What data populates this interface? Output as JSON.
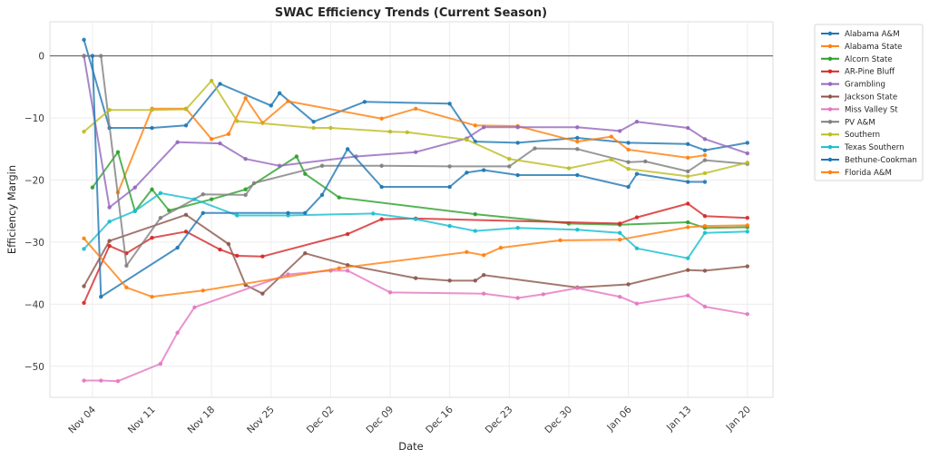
{
  "chart_data": {
    "type": "line",
    "title": "SWAC Efficiency Trends (Current Season)",
    "xlabel": "Date",
    "ylabel": "Efficiency Margin",
    "x_tick_labels": [
      "Nov 04",
      "Nov 11",
      "Nov 18",
      "Nov 25",
      "Dec 02",
      "Dec 09",
      "Dec 16",
      "Dec 23",
      "Dec 30",
      "Jan 06",
      "Jan 13",
      "Jan 20"
    ],
    "x_ticks": [
      "2024-11-04",
      "2024-11-11",
      "2024-11-18",
      "2024-11-25",
      "2024-12-02",
      "2024-12-09",
      "2024-12-16",
      "2024-12-23",
      "2024-12-30",
      "2025-01-06",
      "2025-01-13",
      "2025-01-20"
    ],
    "xlim": [
      "2024-10-30",
      "2025-01-23"
    ],
    "y_ticks": [
      0,
      -10,
      -20,
      -30,
      -40,
      -50
    ],
    "ylim": [
      -55,
      5.5
    ],
    "reference_line_y": 0,
    "grid": true,
    "legend_placement": "outside-top-right",
    "series": [
      {
        "name": "Alabama A&M",
        "color": "#1f77b4",
        "points": [
          [
            "2024-11-03",
            2.6
          ],
          [
            "2024-11-06",
            -11.6
          ],
          [
            "2024-11-11",
            -11.6
          ],
          [
            "2024-11-15",
            -11.2
          ],
          [
            "2024-11-19",
            -4.5
          ],
          [
            "2024-11-25",
            -8.0
          ],
          [
            "2024-11-26",
            -6.0
          ],
          [
            "2024-11-30",
            -10.6
          ],
          [
            "2024-12-06",
            -7.4
          ],
          [
            "2024-12-16",
            -7.7
          ],
          [
            "2024-12-19",
            -13.8
          ],
          [
            "2024-12-24",
            -14.0
          ],
          [
            "2024-12-31",
            -13.2
          ],
          [
            "2025-01-06",
            -14.0
          ],
          [
            "2025-01-13",
            -14.2
          ],
          [
            "2025-01-15",
            -15.2
          ],
          [
            "2025-01-20",
            -14.0
          ]
        ]
      },
      {
        "name": "Alabama State",
        "color": "#ff7f0e",
        "points": [
          [
            "2024-11-07",
            -22.0
          ],
          [
            "2024-11-11",
            -8.5
          ],
          [
            "2024-11-15",
            -8.5
          ],
          [
            "2024-11-18",
            -13.4
          ],
          [
            "2024-11-20",
            -12.6
          ],
          [
            "2024-11-22",
            -6.8
          ],
          [
            "2024-11-24",
            -10.8
          ],
          [
            "2024-11-27",
            -7.3
          ],
          [
            "2024-12-08",
            -10.1
          ],
          [
            "2024-12-12",
            -8.5
          ],
          [
            "2024-12-19",
            -11.2
          ],
          [
            "2024-12-24",
            -11.3
          ],
          [
            "2024-12-31",
            -13.8
          ],
          [
            "2025-01-04",
            -13.0
          ],
          [
            "2025-01-06",
            -15.1
          ],
          [
            "2025-01-13",
            -16.4
          ],
          [
            "2025-01-15",
            -16.0
          ]
        ]
      },
      {
        "name": "Alcorn State",
        "color": "#2ca02c",
        "points": [
          [
            "2024-11-04",
            -21.2
          ],
          [
            "2024-11-07",
            -15.5
          ],
          [
            "2024-11-09",
            -25.0
          ],
          [
            "2024-11-11",
            -21.5
          ],
          [
            "2024-11-13",
            -24.9
          ],
          [
            "2024-11-18",
            -23.1
          ],
          [
            "2024-11-22",
            -21.5
          ],
          [
            "2024-11-28",
            -16.2
          ],
          [
            "2024-11-29",
            -19.0
          ],
          [
            "2024-12-03",
            -22.8
          ],
          [
            "2024-12-19",
            -25.5
          ],
          [
            "2024-12-30",
            -27.0
          ],
          [
            "2025-01-05",
            -27.2
          ],
          [
            "2025-01-13",
            -26.8
          ],
          [
            "2025-01-15",
            -27.7
          ],
          [
            "2025-01-20",
            -27.6
          ]
        ]
      },
      {
        "name": "AR-Pine Bluff",
        "color": "#d62728",
        "points": [
          [
            "2024-11-03",
            -39.8
          ],
          [
            "2024-11-06",
            -30.6
          ],
          [
            "2024-11-08",
            -31.8
          ],
          [
            "2024-11-11",
            -29.3
          ],
          [
            "2024-11-15",
            -28.3
          ],
          [
            "2024-11-19",
            -31.2
          ],
          [
            "2024-11-21",
            -32.2
          ],
          [
            "2024-11-24",
            -32.3
          ],
          [
            "2024-12-04",
            -28.7
          ],
          [
            "2024-12-08",
            -26.3
          ],
          [
            "2024-12-12",
            -26.2
          ],
          [
            "2025-01-05",
            -27.0
          ],
          [
            "2025-01-07",
            -26.0
          ],
          [
            "2025-01-13",
            -23.8
          ],
          [
            "2025-01-15",
            -25.8
          ],
          [
            "2025-01-20",
            -26.1
          ]
        ]
      },
      {
        "name": "Grambling",
        "color": "#9467bd",
        "points": [
          [
            "2024-11-03",
            0.0
          ],
          [
            "2024-11-06",
            -24.4
          ],
          [
            "2024-11-09",
            -21.2
          ],
          [
            "2024-11-14",
            -13.9
          ],
          [
            "2024-11-19",
            -14.1
          ],
          [
            "2024-11-22",
            -16.6
          ],
          [
            "2024-11-26",
            -17.7
          ],
          [
            "2024-12-05",
            -16.2
          ],
          [
            "2024-12-12",
            -15.5
          ],
          [
            "2024-12-18",
            -13.3
          ],
          [
            "2024-12-20",
            -11.5
          ],
          [
            "2024-12-24",
            -11.5
          ],
          [
            "2024-12-31",
            -11.5
          ],
          [
            "2025-01-05",
            -12.1
          ],
          [
            "2025-01-07",
            -10.6
          ],
          [
            "2025-01-13",
            -11.6
          ],
          [
            "2025-01-15",
            -13.4
          ],
          [
            "2025-01-20",
            -15.7
          ]
        ]
      },
      {
        "name": "Jackson State",
        "color": "#8c564b",
        "points": [
          [
            "2024-11-03",
            -37.1
          ],
          [
            "2024-11-06",
            -29.8
          ],
          [
            "2024-11-15",
            -25.6
          ],
          [
            "2024-11-20",
            -30.3
          ],
          [
            "2024-11-22",
            -36.9
          ],
          [
            "2024-11-24",
            -38.3
          ],
          [
            "2024-11-29",
            -31.8
          ],
          [
            "2024-12-04",
            -33.7
          ],
          [
            "2024-12-12",
            -35.8
          ],
          [
            "2024-12-16",
            -36.2
          ],
          [
            "2024-12-19",
            -36.2
          ],
          [
            "2024-12-20",
            -35.3
          ],
          [
            "2024-12-31",
            -37.3
          ],
          [
            "2025-01-06",
            -36.8
          ],
          [
            "2025-01-13",
            -34.5
          ],
          [
            "2025-01-15",
            -34.6
          ],
          [
            "2025-01-20",
            -33.9
          ]
        ]
      },
      {
        "name": "Miss Valley St",
        "color": "#e377c2",
        "points": [
          [
            "2024-11-03",
            -52.3
          ],
          [
            "2024-11-05",
            -52.3
          ],
          [
            "2024-11-07",
            -52.4
          ],
          [
            "2024-11-12",
            -49.6
          ],
          [
            "2024-11-14",
            -44.6
          ],
          [
            "2024-11-16",
            -40.5
          ],
          [
            "2024-11-27",
            -35.2
          ],
          [
            "2024-12-02",
            -34.6
          ],
          [
            "2024-12-04",
            -34.6
          ],
          [
            "2024-12-09",
            -38.1
          ],
          [
            "2024-12-20",
            -38.3
          ],
          [
            "2024-12-24",
            -39.0
          ],
          [
            "2024-12-27",
            -38.4
          ],
          [
            "2024-12-31",
            -37.4
          ],
          [
            "2025-01-05",
            -38.8
          ],
          [
            "2025-01-07",
            -39.9
          ],
          [
            "2025-01-13",
            -38.6
          ],
          [
            "2025-01-15",
            -40.4
          ],
          [
            "2025-01-20",
            -41.6
          ]
        ]
      },
      {
        "name": "PV A&M",
        "color": "#7f7f7f",
        "points": [
          [
            "2024-11-03",
            0.0
          ],
          [
            "2024-11-05",
            0.0
          ],
          [
            "2024-11-08",
            -33.8
          ],
          [
            "2024-11-12",
            -26.1
          ],
          [
            "2024-11-17",
            -22.3
          ],
          [
            "2024-11-22",
            -22.4
          ],
          [
            "2024-11-23",
            -20.5
          ],
          [
            "2024-12-01",
            -17.7
          ],
          [
            "2024-12-08",
            -17.7
          ],
          [
            "2024-12-16",
            -17.8
          ],
          [
            "2024-12-23",
            -17.8
          ],
          [
            "2024-12-26",
            -14.9
          ],
          [
            "2024-12-31",
            -15.0
          ],
          [
            "2025-01-06",
            -17.1
          ],
          [
            "2025-01-08",
            -17.0
          ],
          [
            "2025-01-13",
            -18.6
          ],
          [
            "2025-01-15",
            -16.8
          ],
          [
            "2025-01-20",
            -17.4
          ]
        ]
      },
      {
        "name": "Southern",
        "color": "#bcbd22",
        "points": [
          [
            "2024-11-03",
            -12.2
          ],
          [
            "2024-11-06",
            -8.7
          ],
          [
            "2024-11-11",
            -8.7
          ],
          [
            "2024-11-15",
            -8.6
          ],
          [
            "2024-11-18",
            -4.0
          ],
          [
            "2024-11-21",
            -10.5
          ],
          [
            "2024-11-30",
            -11.6
          ],
          [
            "2024-12-02",
            -11.6
          ],
          [
            "2024-12-09",
            -12.2
          ],
          [
            "2024-12-11",
            -12.3
          ],
          [
            "2024-12-18",
            -13.5
          ],
          [
            "2024-12-23",
            -16.6
          ],
          [
            "2024-12-30",
            -18.1
          ],
          [
            "2025-01-04",
            -16.7
          ],
          [
            "2025-01-06",
            -18.2
          ],
          [
            "2025-01-13",
            -19.4
          ],
          [
            "2025-01-15",
            -18.9
          ],
          [
            "2025-01-20",
            -17.2
          ]
        ]
      },
      {
        "name": "Texas Southern",
        "color": "#17becf",
        "points": [
          [
            "2024-11-03",
            -31.1
          ],
          [
            "2024-11-06",
            -26.7
          ],
          [
            "2024-11-09",
            -25.0
          ],
          [
            "2024-11-12",
            -22.1
          ],
          [
            "2024-11-16",
            -23.1
          ],
          [
            "2024-11-21",
            -25.7
          ],
          [
            "2024-11-27",
            -25.7
          ],
          [
            "2024-12-07",
            -25.4
          ],
          [
            "2024-12-12",
            -26.3
          ],
          [
            "2024-12-16",
            -27.4
          ],
          [
            "2024-12-19",
            -28.2
          ],
          [
            "2024-12-24",
            -27.7
          ],
          [
            "2024-12-31",
            -28.0
          ],
          [
            "2025-01-05",
            -28.5
          ],
          [
            "2025-01-07",
            -31.0
          ],
          [
            "2025-01-13",
            -32.6
          ],
          [
            "2025-01-15",
            -28.5
          ],
          [
            "2025-01-20",
            -28.3
          ]
        ]
      },
      {
        "name": "Bethune-Cookman",
        "color": "#1f77b4",
        "points": [
          [
            "2024-11-04",
            0.0
          ],
          [
            "2024-11-05",
            -38.8
          ],
          [
            "2024-11-14",
            -30.9
          ],
          [
            "2024-11-17",
            -25.3
          ],
          [
            "2024-11-27",
            -25.3
          ],
          [
            "2024-11-29",
            -25.3
          ],
          [
            "2024-12-01",
            -22.4
          ],
          [
            "2024-12-04",
            -15.0
          ],
          [
            "2024-12-08",
            -21.1
          ],
          [
            "2024-12-16",
            -21.1
          ],
          [
            "2024-12-18",
            -18.8
          ],
          [
            "2024-12-20",
            -18.4
          ],
          [
            "2024-12-24",
            -19.2
          ],
          [
            "2024-12-31",
            -19.2
          ],
          [
            "2025-01-06",
            -21.1
          ],
          [
            "2025-01-07",
            -19.0
          ],
          [
            "2025-01-13",
            -20.3
          ],
          [
            "2025-01-15",
            -20.3
          ]
        ]
      },
      {
        "name": "Florida A&M",
        "color": "#ff7f0e",
        "points": [
          [
            "2024-11-03",
            -29.4
          ],
          [
            "2024-11-08",
            -37.3
          ],
          [
            "2024-11-11",
            -38.8
          ],
          [
            "2024-11-17",
            -37.8
          ],
          [
            "2024-12-03",
            -34.2
          ],
          [
            "2024-12-18",
            -31.6
          ],
          [
            "2024-12-20",
            -32.1
          ],
          [
            "2024-12-22",
            -30.9
          ],
          [
            "2024-12-29",
            -29.7
          ],
          [
            "2025-01-05",
            -29.6
          ],
          [
            "2025-01-13",
            -27.6
          ],
          [
            "2025-01-15",
            -27.4
          ],
          [
            "2025-01-20",
            -27.3
          ]
        ]
      }
    ]
  }
}
